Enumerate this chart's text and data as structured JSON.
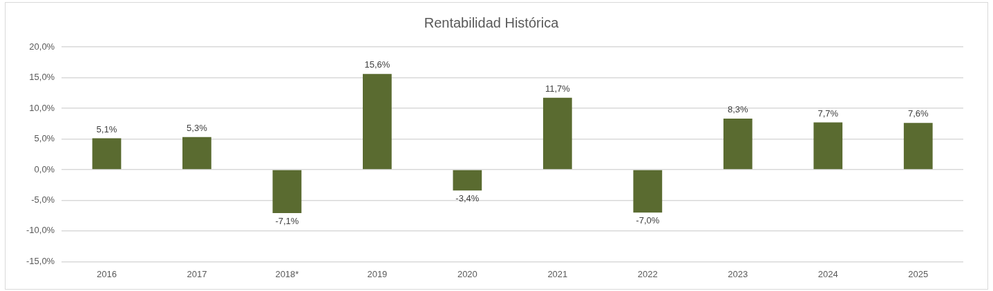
{
  "chart_data": {
    "type": "bar",
    "title": "Rentabilidad Histórica",
    "categories": [
      "2016",
      "2017",
      "2018*",
      "2019",
      "2020",
      "2021",
      "2022",
      "2023",
      "2024",
      "2025"
    ],
    "values": [
      5.1,
      5.3,
      -7.1,
      15.6,
      -3.4,
      11.7,
      -7.0,
      8.3,
      7.7,
      7.6
    ],
    "value_labels": [
      "5,1%",
      "5,3%",
      "-7,1%",
      "15,6%",
      "-3,4%",
      "11,7%",
      "-7,0%",
      "8,3%",
      "7,7%",
      "7,6%"
    ],
    "color": "#5a6b30",
    "ylim": [
      -15,
      20
    ],
    "yticks": [
      {
        "value": -15,
        "label": "-15,0%"
      },
      {
        "value": -10,
        "label": "-10,0%"
      },
      {
        "value": -5,
        "label": "-5,0%"
      },
      {
        "value": 0,
        "label": "0,0%"
      },
      {
        "value": 5,
        "label": "5,0%"
      },
      {
        "value": 10,
        "label": "10,0%"
      },
      {
        "value": 15,
        "label": "15,0%"
      },
      {
        "value": 20,
        "label": "20,0%"
      }
    ],
    "grid": "y",
    "legend": false
  }
}
